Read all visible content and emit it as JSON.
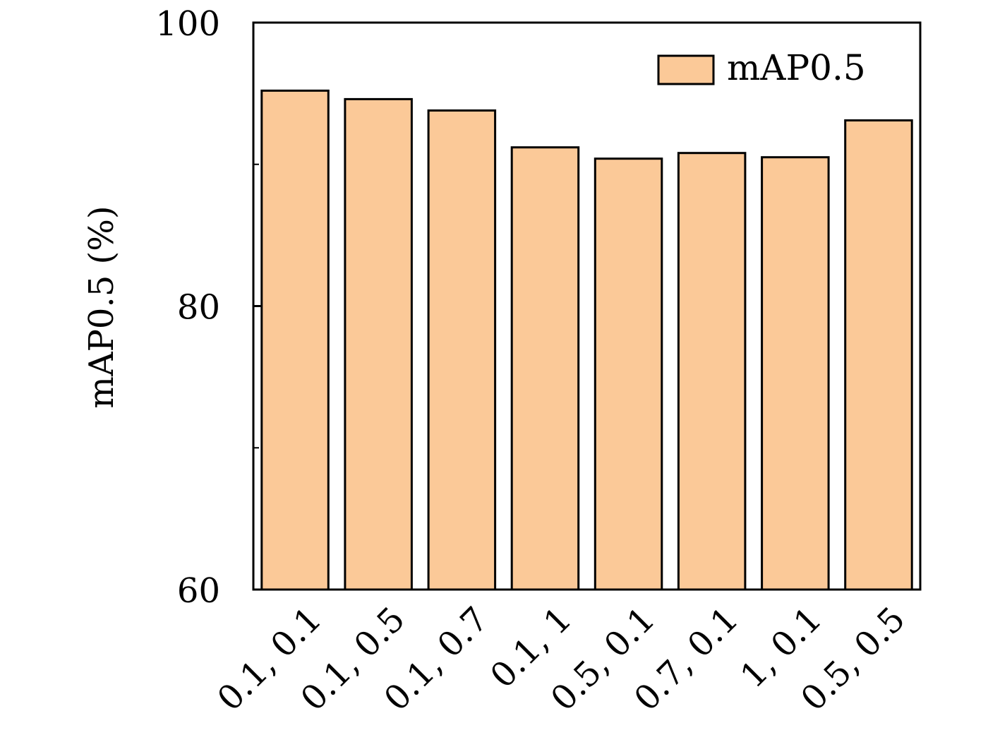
{
  "chart_data": {
    "type": "bar",
    "categories": [
      "0.1, 0.1",
      "0.1, 0.5",
      "0.1, 0.7",
      "0.1, 1",
      "0.5, 0.1",
      "0.7, 0.1",
      "1, 0.1",
      "0.5, 0.5"
    ],
    "series": [
      {
        "name": "mAP0.5",
        "values": [
          95.2,
          94.6,
          93.8,
          91.2,
          90.4,
          90.8,
          90.5,
          93.1
        ]
      }
    ],
    "ylabel": "mAP0.5 (%)",
    "xlabel": "",
    "ylim": [
      60,
      100
    ],
    "yticks": [
      60,
      80,
      100
    ],
    "yticks_minor": [
      70,
      90
    ],
    "legend_position": "top-right",
    "grid": false,
    "colors": {
      "bar_fill": "#fbc998",
      "bar_edge": "#000000"
    }
  }
}
